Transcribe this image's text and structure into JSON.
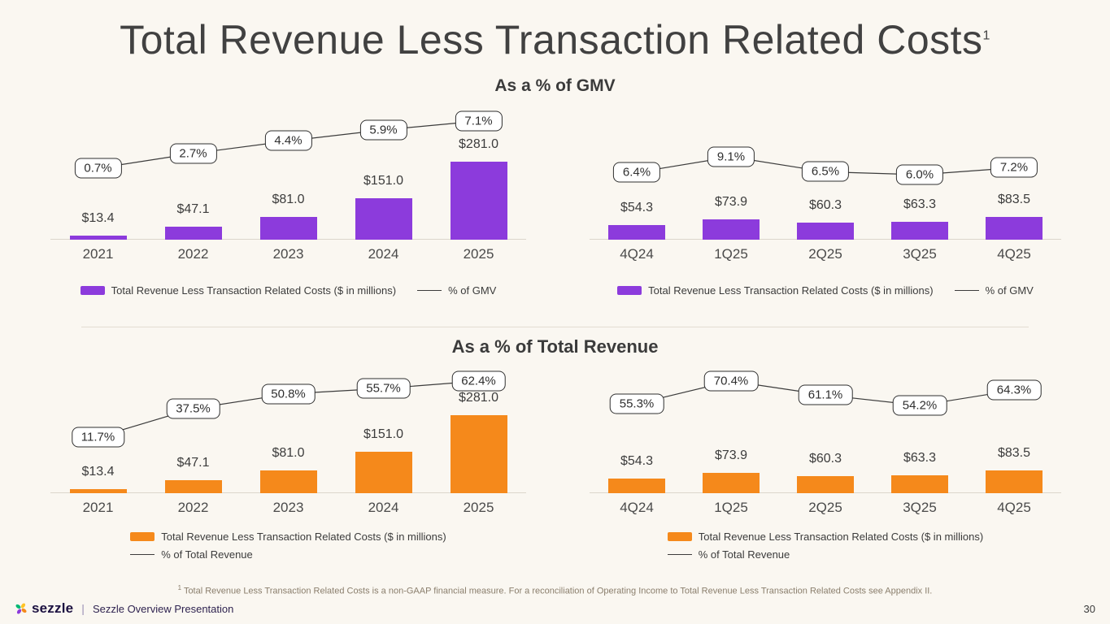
{
  "slide": {
    "title": "Total Revenue Less Transaction Related Costs",
    "title_superscript": "1",
    "footnote_superscript": "1",
    "footnote": "Total Revenue Less Transaction Related Costs is a non-GAAP financial measure. For a reconciliation of Operating Income to Total Revenue Less Transaction Related Costs see Appendix II.",
    "page_number": "30"
  },
  "sections": {
    "gmv": {
      "heading": "As a % of GMV"
    },
    "total_revenue": {
      "heading": "As a % of Total Revenue"
    }
  },
  "footer": {
    "brand": "sezzle",
    "separator": "|",
    "deck_title": "Sezzle Overview Presentation"
  },
  "colors": {
    "purple": "#8C3BDC",
    "orange": "#F5891B",
    "background": "#FAF7F1"
  },
  "chart_data": [
    {
      "id": "annual-as-pct-of-gmv",
      "type": "bar+line",
      "title": "As a % of GMV",
      "categories": [
        "2021",
        "2022",
        "2023",
        "2024",
        "2025"
      ],
      "series": [
        {
          "name": "Total Revenue Less Transaction Related Costs ($ in millions)",
          "type": "bar",
          "color": "#8C3BDC",
          "values": [
            13.4,
            47.1,
            81.0,
            151.0,
            281.0
          ],
          "labels": [
            "$13.4",
            "$47.1",
            "$81.0",
            "$151.0",
            "$281.0"
          ]
        },
        {
          "name": "% of GMV",
          "type": "line",
          "values": [
            0.7,
            2.7,
            4.4,
            5.9,
            7.1
          ],
          "labels": [
            "0.7%",
            "2.7%",
            "4.4%",
            "5.9%",
            "7.1%"
          ]
        }
      ],
      "legend_position": "bottom"
    },
    {
      "id": "quarterly-as-pct-of-gmv",
      "type": "bar+line",
      "title": "As a % of GMV",
      "categories": [
        "4Q24",
        "1Q25",
        "2Q25",
        "3Q25",
        "4Q25"
      ],
      "series": [
        {
          "name": "Total Revenue Less Transaction Related Costs ($ in millions)",
          "type": "bar",
          "color": "#8C3BDC",
          "values": [
            54.3,
            73.9,
            60.3,
            63.3,
            83.5
          ],
          "labels": [
            "$54.3",
            "$73.9",
            "$60.3",
            "$63.3",
            "$83.5"
          ]
        },
        {
          "name": "% of GMV",
          "type": "line",
          "values": [
            6.4,
            9.1,
            6.5,
            6.0,
            7.2
          ],
          "labels": [
            "6.4%",
            "9.1%",
            "6.5%",
            "6.0%",
            "7.2%"
          ]
        }
      ],
      "legend_position": "bottom"
    },
    {
      "id": "annual-as-pct-of-total-revenue",
      "type": "bar+line",
      "title": "As a % of Total Revenue",
      "categories": [
        "2021",
        "2022",
        "2023",
        "2024",
        "2025"
      ],
      "series": [
        {
          "name": "Total Revenue Less Transaction Related Costs ($ in millions)",
          "type": "bar",
          "color": "#F5891B",
          "values": [
            13.4,
            47.1,
            81.0,
            151.0,
            281.0
          ],
          "labels": [
            "$13.4",
            "$47.1",
            "$81.0",
            "$151.0",
            "$281.0"
          ]
        },
        {
          "name": "% of Total Revenue",
          "type": "line",
          "values": [
            11.7,
            37.5,
            50.8,
            55.7,
            62.4
          ],
          "labels": [
            "11.7%",
            "37.5%",
            "50.8%",
            "55.7%",
            "62.4%"
          ]
        }
      ],
      "legend_position": "bottom"
    },
    {
      "id": "quarterly-as-pct-of-total-revenue",
      "type": "bar+line",
      "title": "As a % of Total Revenue",
      "categories": [
        "4Q24",
        "1Q25",
        "2Q25",
        "3Q25",
        "4Q25"
      ],
      "series": [
        {
          "name": "Total Revenue Less Transaction Related Costs ($ in millions)",
          "type": "bar",
          "color": "#F5891B",
          "values": [
            54.3,
            73.9,
            60.3,
            63.3,
            83.5
          ],
          "labels": [
            "$54.3",
            "$73.9",
            "$60.3",
            "$63.3",
            "$83.5"
          ]
        },
        {
          "name": "% of Total Revenue",
          "type": "line",
          "values": [
            55.3,
            70.4,
            61.1,
            54.2,
            64.3
          ],
          "labels": [
            "55.3%",
            "70.4%",
            "61.1%",
            "54.2%",
            "64.3%"
          ]
        }
      ],
      "legend_position": "bottom"
    }
  ]
}
